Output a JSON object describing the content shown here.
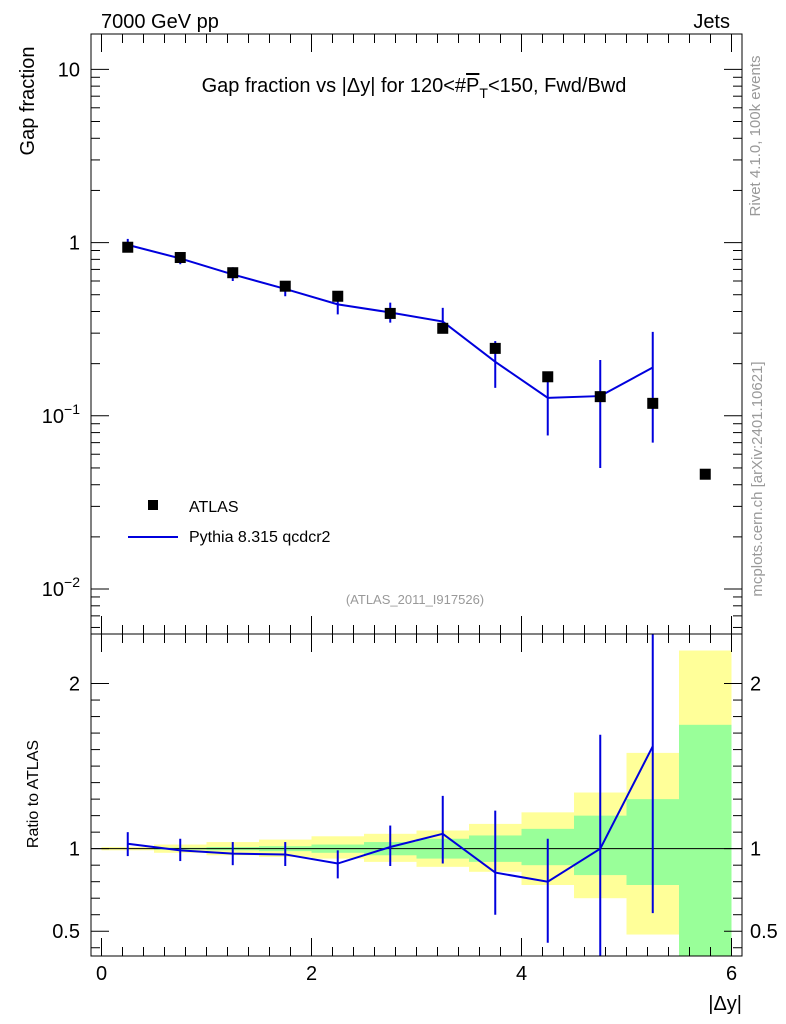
{
  "header": {
    "energy_label": "7000 GeV pp",
    "process_label": "Jets"
  },
  "side_labels": {
    "rivet": "Rivet 4.1.0,  100k events",
    "mcplots": "mcplots.cern.ch [arXiv:2401.10621]"
  },
  "colors": {
    "mc_line": "#0000dd",
    "data_marker": "#000000",
    "band_stat": "#99ff99",
    "band_total": "#ffff99"
  },
  "chart_data": [
    {
      "type": "line",
      "title_prefix": "Gap fraction vs |Δy| for 120<#",
      "title_var": "P",
      "title_sub": "T",
      "title_suffix": "<150, Fwd/Bwd",
      "ylabel": "Gap fraction",
      "yscale": "log",
      "ylim": [
        0.0055,
        16
      ],
      "xlim": [
        -0.1,
        6.1
      ],
      "yticks": [
        {
          "value": 10,
          "base": "10",
          "exp": ""
        },
        {
          "value": 1,
          "base": "1",
          "exp": ""
        },
        {
          "value": 0.1,
          "base": "10",
          "exp": "−1"
        },
        {
          "value": 0.01,
          "base": "10",
          "exp": "−2"
        }
      ],
      "reference_label": "(ATLAS_2011_I917526)",
      "legend": [
        {
          "name": "ATLAS",
          "kind": "marker"
        },
        {
          "name": "Pythia 8.315 qcdcr2",
          "kind": "line"
        }
      ],
      "series": [
        {
          "name": "ATLAS",
          "kind": "marker",
          "x": [
            0.25,
            0.75,
            1.25,
            1.75,
            2.25,
            2.75,
            3.25,
            3.75,
            4.25,
            4.75,
            5.25,
            5.75
          ],
          "y": [
            0.94,
            0.82,
            0.67,
            0.56,
            0.49,
            0.39,
            0.32,
            0.245,
            0.168,
            0.129,
            0.118,
            0.046
          ]
        },
        {
          "name": "Pythia 8.315 qcdcr2",
          "kind": "line",
          "x": [
            0.25,
            0.75,
            1.25,
            1.75,
            2.25,
            2.75,
            3.25,
            3.75,
            4.25,
            4.75,
            5.25
          ],
          "y": [
            0.97,
            0.81,
            0.655,
            0.54,
            0.44,
            0.395,
            0.35,
            0.205,
            0.127,
            0.13,
            0.19
          ],
          "yerr_low": [
            0.9,
            0.75,
            0.6,
            0.49,
            0.385,
            0.345,
            0.3,
            0.145,
            0.077,
            0.05,
            0.07
          ],
          "yerr_high": [
            1.05,
            0.88,
            0.72,
            0.595,
            0.5,
            0.45,
            0.42,
            0.27,
            0.18,
            0.21,
            0.305
          ]
        }
      ]
    },
    {
      "type": "line",
      "ylabel": "Ratio to ATLAS",
      "xlabel": "|Δy|",
      "ylim": [
        0.35,
        2.3
      ],
      "xlim": [
        -0.1,
        6.1
      ],
      "xticks": [
        0,
        2,
        4,
        6
      ],
      "yticks": [
        0.5,
        1,
        2
      ],
      "ratio_line": 1,
      "bands": {
        "edges": [
          0,
          0.5,
          1,
          1.5,
          2,
          2.5,
          3,
          3.5,
          4,
          4.5,
          5,
          5.5,
          6
        ],
        "stat_low": [
          0.998,
          0.994,
          0.99,
          0.985,
          0.975,
          0.96,
          0.94,
          0.92,
          0.9,
          0.84,
          0.78,
          0.3
        ],
        "stat_high": [
          1.002,
          1.006,
          1.01,
          1.015,
          1.025,
          1.04,
          1.06,
          1.08,
          1.12,
          1.2,
          1.3,
          1.75
        ],
        "total_low": [
          0.99,
          0.975,
          0.96,
          0.95,
          0.94,
          0.92,
          0.89,
          0.86,
          0.78,
          0.7,
          0.48,
          0.3
        ],
        "total_high": [
          1.01,
          1.025,
          1.04,
          1.055,
          1.075,
          1.09,
          1.11,
          1.15,
          1.22,
          1.34,
          1.58,
          2.2
        ]
      },
      "series": [
        {
          "name": "Pythia 8.315 qcdcr2",
          "x": [
            0.25,
            0.75,
            1.25,
            1.75,
            2.25,
            2.75,
            3.25,
            3.75,
            4.25,
            4.75,
            5.25
          ],
          "y": [
            1.03,
            0.99,
            0.97,
            0.965,
            0.91,
            1.01,
            1.09,
            0.855,
            0.8,
            1.0,
            1.62
          ],
          "yerr_low": [
            0.955,
            0.925,
            0.9,
            0.895,
            0.82,
            0.895,
            0.91,
            0.6,
            0.43,
            0.3,
            0.61
          ],
          "yerr_high": [
            1.1,
            1.06,
            1.04,
            1.04,
            0.99,
            1.14,
            1.32,
            1.23,
            1.06,
            1.69,
            2.4
          ]
        }
      ]
    }
  ]
}
